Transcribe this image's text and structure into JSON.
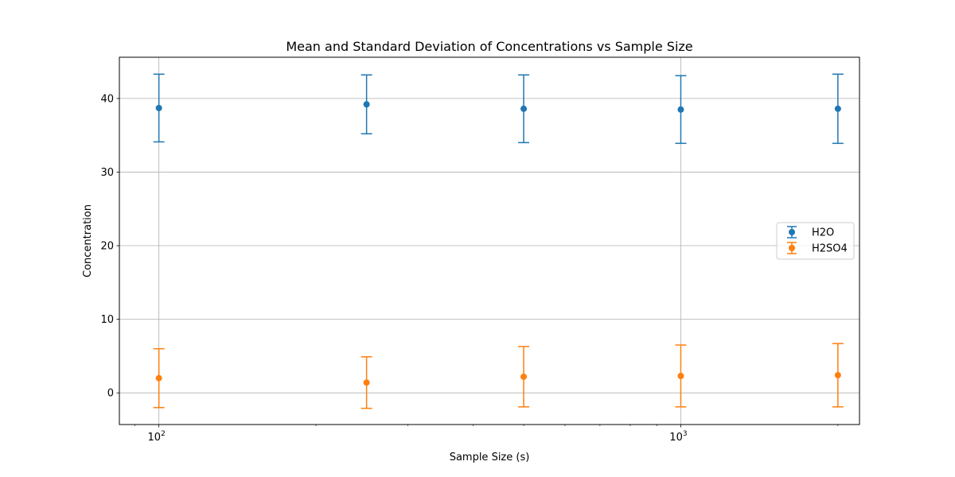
{
  "chart_data": {
    "type": "scatter",
    "title": "Mean and Standard Deviation of Concentrations vs Sample Size",
    "xlabel": "Sample Size (s)",
    "ylabel": "Concentration",
    "x_scale": "log",
    "xlim": [
      84,
      2200
    ],
    "ylim": [
      -4.3,
      45.6
    ],
    "x_ticks": [
      {
        "value": 100,
        "base": "10",
        "exp": "2"
      },
      {
        "value": 1000,
        "base": "10",
        "exp": "3"
      }
    ],
    "y_ticks": [
      0,
      10,
      20,
      30,
      40
    ],
    "grid": true,
    "legend_position": "center-right",
    "series": [
      {
        "name": "H2O",
        "color": "#1f77b4",
        "x": [
          100,
          250,
          500,
          1000,
          2000
        ],
        "y": [
          38.7,
          39.2,
          38.6,
          38.5,
          38.6
        ],
        "yerr": [
          4.6,
          4.0,
          4.6,
          4.6,
          4.7
        ]
      },
      {
        "name": "H2SO4",
        "color": "#ff7f0e",
        "x": [
          100,
          250,
          500,
          1000,
          2000
        ],
        "y": [
          2.0,
          1.4,
          2.2,
          2.3,
          2.4
        ],
        "yerr": [
          4.0,
          3.5,
          4.1,
          4.2,
          4.3
        ]
      }
    ]
  }
}
